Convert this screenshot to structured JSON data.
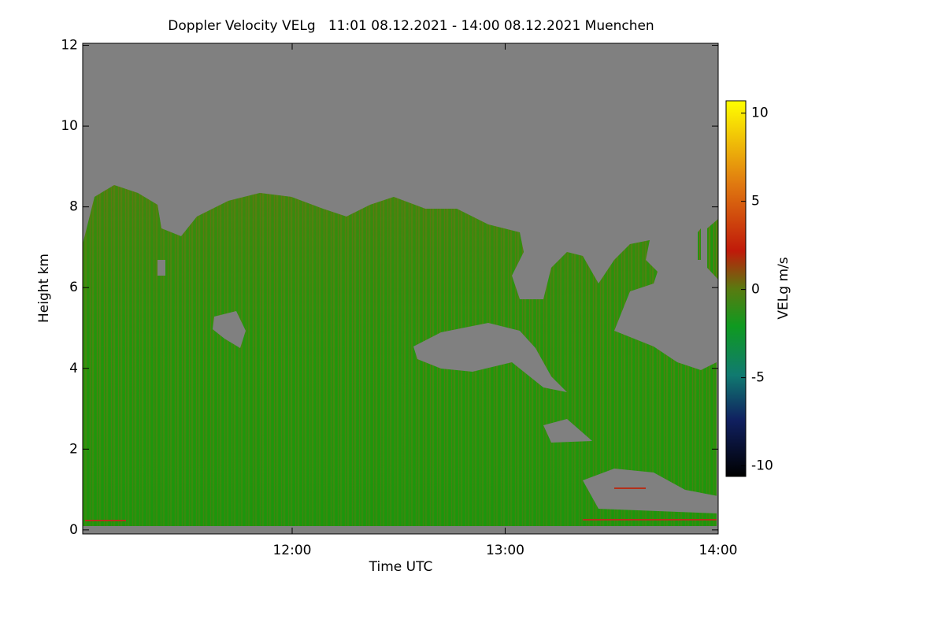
{
  "chart_data": {
    "type": "heatmap",
    "title": "Doppler Velocity VELg   11:01 08.12.2021 - 14:00 08.12.2021 Muenchen",
    "x_label": "Time UTC",
    "y_label": "Height km",
    "colorbar_label": "VELg m/s",
    "xlim": [
      11.0167,
      14.0
    ],
    "xticks": [
      {
        "value": 12,
        "label": "12:00"
      },
      {
        "value": 13,
        "label": "13:00"
      },
      {
        "value": 14,
        "label": "14:00"
      }
    ],
    "ylim": [
      -0.1,
      12.05
    ],
    "yticks": [
      0,
      2,
      4,
      6,
      8,
      10,
      12
    ],
    "clim": [
      -10.6,
      10.7
    ],
    "cticks": [
      -10,
      -5,
      0,
      5,
      10
    ],
    "background_color": "#808080"
  }
}
